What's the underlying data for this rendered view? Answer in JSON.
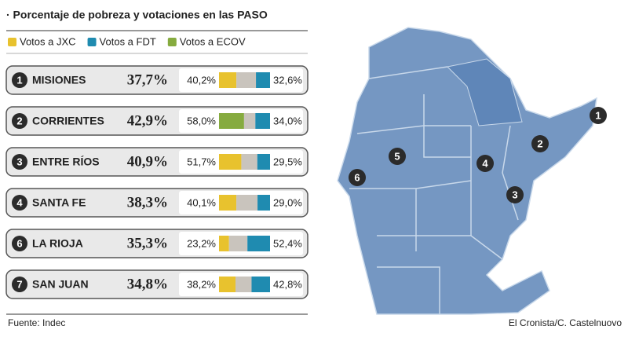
{
  "header": {
    "title": "· Porcentaje de pobreza y votaciones en las PASO"
  },
  "legend": [
    {
      "label": "Votos a JXC",
      "color": "#e8c22e"
    },
    {
      "label": "Votos a FDT",
      "color": "#1f8bb0"
    },
    {
      "label": "Votos a ECOV",
      "color": "#86ab3f"
    }
  ],
  "rows": [
    {
      "number": "1",
      "name": "MISIONES",
      "poverty": "37,7%",
      "left": "40,2%",
      "left_color": "#e8c22e",
      "right": "32,6%"
    },
    {
      "number": "2",
      "name": "CORRIENTES",
      "poverty": "42,9%",
      "left": "58,0%",
      "left_color": "#86ab3f",
      "right": "34,0%"
    },
    {
      "number": "3",
      "name": "ENTRE RÍOS",
      "poverty": "40,9%",
      "left": "51,7%",
      "left_color": "#e8c22e",
      "right": "29,5%"
    },
    {
      "number": "4",
      "name": "SANTA FE",
      "poverty": "38,3%",
      "left": "40,1%",
      "left_color": "#e8c22e",
      "right": "29,0%"
    },
    {
      "number": "6",
      "name": "LA RIOJA",
      "poverty": "35,3%",
      "left": "23,2%",
      "left_color": "#e8c22e",
      "right": "52,4%"
    },
    {
      "number": "7",
      "name": "SAN JUAN",
      "poverty": "34,8%",
      "left": "38,2%",
      "left_color": "#e8c22e",
      "right": "42,8%"
    }
  ],
  "map": {
    "markers": [
      "1",
      "2",
      "3",
      "4",
      "5",
      "6"
    ]
  },
  "footer": {
    "source": "Fuente: Indec",
    "credit": "El Cronista/C. Castelnuovo"
  }
}
